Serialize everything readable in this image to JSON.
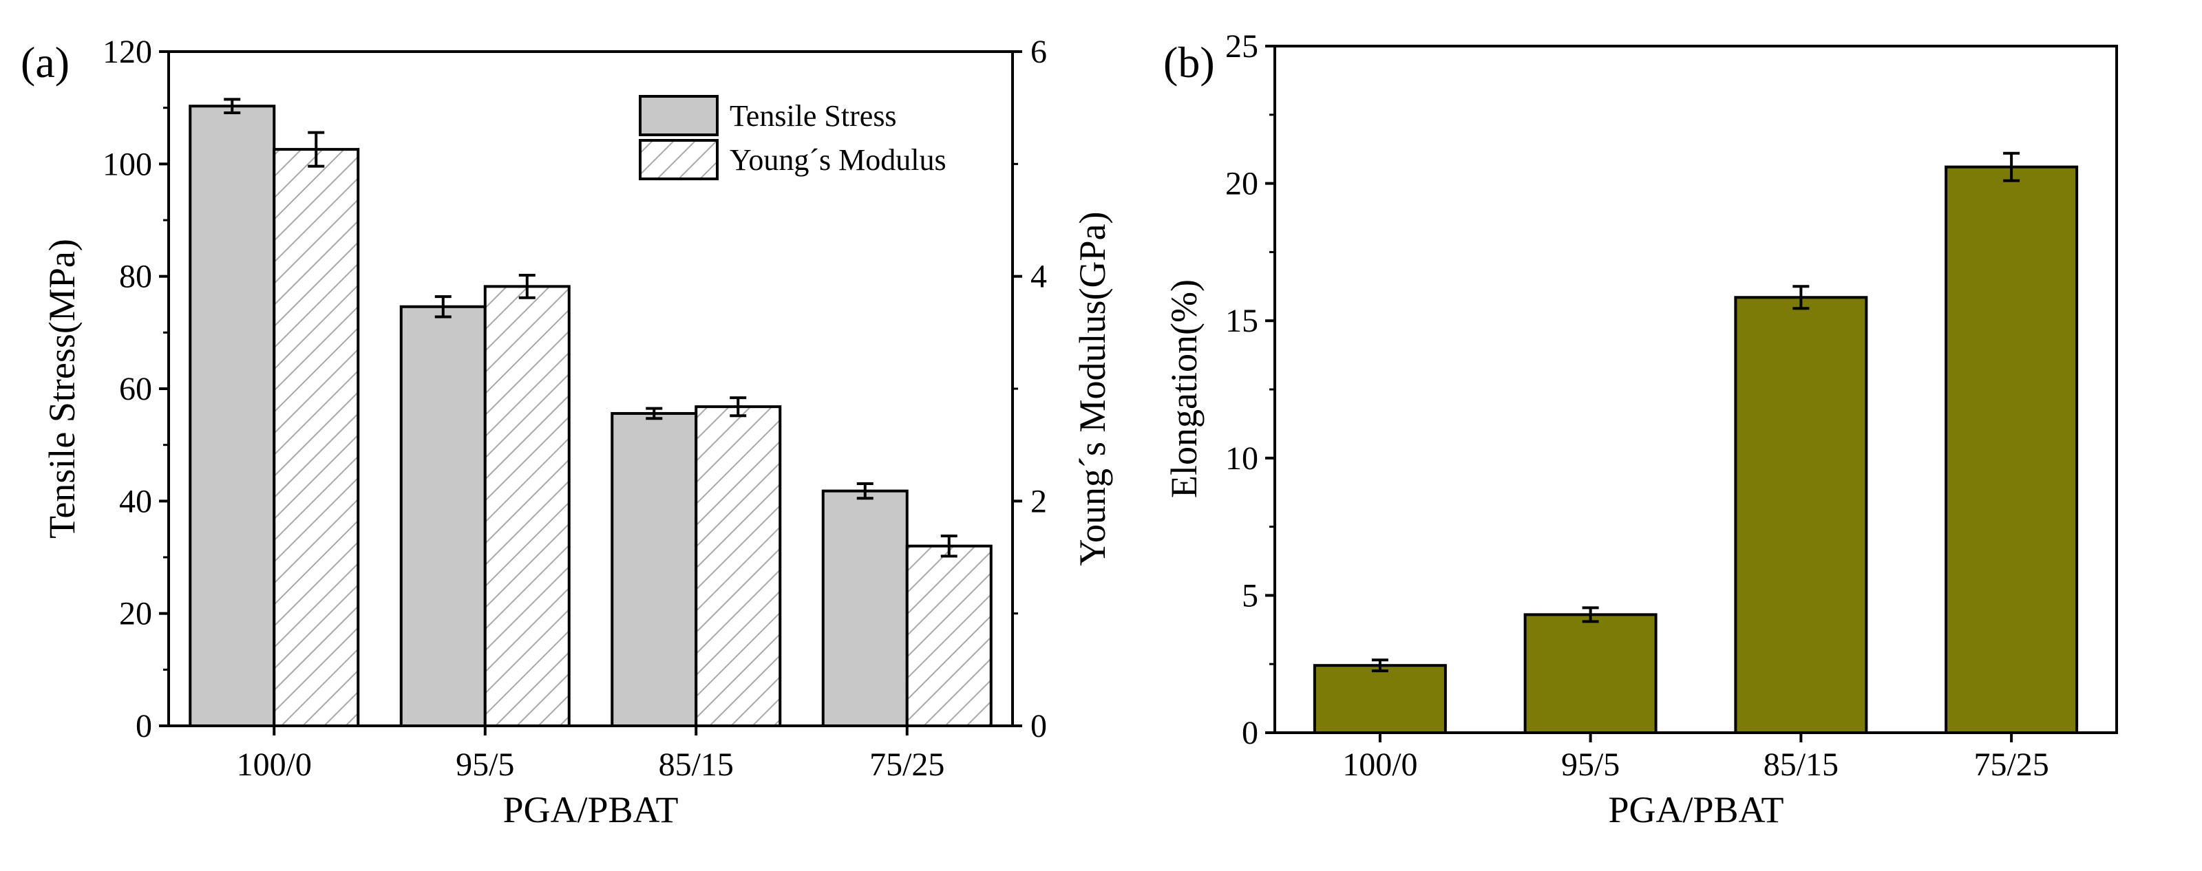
{
  "chart_data": [
    {
      "panel_label": "(a)",
      "type": "bar",
      "categories": [
        "100/0",
        "95/5",
        "85/15",
        "75/25"
      ],
      "xlabel": "PGA/PBAT",
      "ylabel": "Tensile Stress(MPa)",
      "y2label": "Young´s Modulus(GPa)",
      "ylim": [
        0,
        120
      ],
      "y2lim": [
        0,
        6
      ],
      "yticks": [
        "0",
        "20",
        "40",
        "60",
        "80",
        "100",
        "120"
      ],
      "y2ticks": [
        "0",
        "2",
        "4",
        "6"
      ],
      "legend_position": "top-right",
      "series": [
        {
          "name": "Tensile Stress",
          "axis": "left",
          "values": [
            110.3,
            74.6,
            55.6,
            41.8
          ],
          "errors": [
            1.2,
            1.8,
            0.9,
            1.3
          ],
          "fill": "#c8c8c8",
          "pattern": "solid"
        },
        {
          "name": "Young´s Modulus",
          "axis": "right",
          "values": [
            5.13,
            3.91,
            2.84,
            1.6
          ],
          "errors": [
            0.15,
            0.1,
            0.08,
            0.09
          ],
          "fill": "#ffffff",
          "pattern": "hatch"
        }
      ]
    },
    {
      "panel_label": "(b)",
      "type": "bar",
      "categories": [
        "100/0",
        "95/5",
        "85/15",
        "75/25"
      ],
      "xlabel": "PGA/PBAT",
      "ylabel": "Elongation(%)",
      "ylim": [
        0,
        25
      ],
      "yticks": [
        "0",
        "5",
        "10",
        "15",
        "20",
        "25"
      ],
      "series": [
        {
          "name": "Elongation",
          "values": [
            2.45,
            4.3,
            15.85,
            20.6
          ],
          "errors": [
            0.2,
            0.25,
            0.4,
            0.5
          ],
          "fill": "#7d7b08"
        }
      ]
    }
  ]
}
